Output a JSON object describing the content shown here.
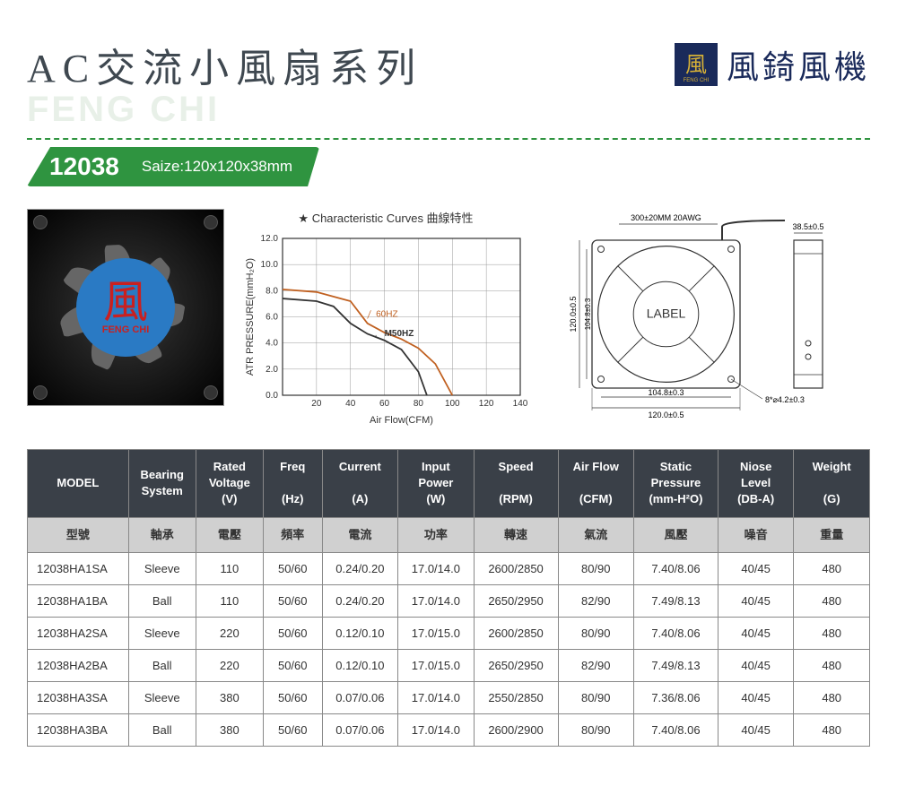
{
  "colors": {
    "accent_green": "#3a9d3a",
    "banner_green": "#2f9440",
    "dashed_green": "#2f9440",
    "header_bg": "#3a4048",
    "brand_navy": "#1a2a5a",
    "brand_gold": "#d4af37",
    "hub_blue": "#2a7ac4",
    "hub_red": "#c92020",
    "chart_60hz": "#c06020",
    "chart_50hz": "#333333",
    "grid": "#999999"
  },
  "header": {
    "title": "AC交流小風扇系列",
    "watermark": "FENG CHI",
    "brand_char": "風",
    "brand_sub": "FENG CHI",
    "brand_text": "風錡風機"
  },
  "banner": {
    "model": "12038",
    "size_label": "Saize:120x120x38mm"
  },
  "fan": {
    "hub_char": "風",
    "hub_brand": "FENG CHI"
  },
  "chart": {
    "title": "★ Characteristic Curves 曲線特性",
    "ylabel": "ATR PRESSURE(mmH₂O)",
    "xlabel": "Air Flow(CFM)",
    "xlim": [
      0,
      140
    ],
    "ylim": [
      0,
      12
    ],
    "xtick_step": 20,
    "ytick_step": 2,
    "label_50hz": "M50HZ",
    "label_60hz": "60HZ",
    "curve_50hz": [
      [
        0,
        7.4
      ],
      [
        20,
        7.2
      ],
      [
        30,
        6.8
      ],
      [
        40,
        5.5
      ],
      [
        50,
        4.7
      ],
      [
        60,
        4.2
      ],
      [
        70,
        3.5
      ],
      [
        80,
        1.8
      ],
      [
        85,
        0
      ]
    ],
    "curve_60hz": [
      [
        0,
        8.1
      ],
      [
        20,
        7.9
      ],
      [
        40,
        7.2
      ],
      [
        50,
        5.5
      ],
      [
        60,
        4.8
      ],
      [
        70,
        4.3
      ],
      [
        80,
        3.6
      ],
      [
        90,
        2.4
      ],
      [
        100,
        0
      ]
    ],
    "axis_fontsize": 10
  },
  "drawing": {
    "outer": "120.0±0.5",
    "hole_pitch": "104.8±0.3",
    "inner_v": "104.8±0.3",
    "cable": "300±20MM 20AWG",
    "depth": "38.5±0.5",
    "hole_dia": "8*⌀4.2±0.3",
    "label_text": "LABEL"
  },
  "table": {
    "columns_en": [
      "MODEL",
      "Bearing\nSystem",
      "Rated\nVoltage\n(V)",
      "Freq\n\n(Hz)",
      "Current\n\n(A)",
      "Input\nPower\n(W)",
      "Speed\n\n(RPM)",
      "Air Flow\n\n(CFM)",
      "Static\nPressure\n(mm-H²O)",
      "Niose\nLevel\n(DB-A)",
      "Weight\n\n(G)"
    ],
    "columns_zh": [
      "型號",
      "軸承",
      "電壓",
      "頻率",
      "電流",
      "功率",
      "轉速",
      "氣流",
      "風壓",
      "噪音",
      "重量"
    ],
    "rows": [
      [
        "12038HA1SA",
        "Sleeve",
        "110",
        "50/60",
        "0.24/0.20",
        "17.0/14.0",
        "2600/2850",
        "80/90",
        "7.40/8.06",
        "40/45",
        "480"
      ],
      [
        "12038HA1BA",
        "Ball",
        "110",
        "50/60",
        "0.24/0.20",
        "17.0/14.0",
        "2650/2950",
        "82/90",
        "7.49/8.13",
        "40/45",
        "480"
      ],
      [
        "12038HA2SA",
        "Sleeve",
        "220",
        "50/60",
        "0.12/0.10",
        "17.0/15.0",
        "2600/2850",
        "80/90",
        "7.40/8.06",
        "40/45",
        "480"
      ],
      [
        "12038HA2BA",
        "Ball",
        "220",
        "50/60",
        "0.12/0.10",
        "17.0/15.0",
        "2650/2950",
        "82/90",
        "7.49/8.13",
        "40/45",
        "480"
      ],
      [
        "12038HA3SA",
        "Sleeve",
        "380",
        "50/60",
        "0.07/0.06",
        "17.0/14.0",
        "2550/2850",
        "80/90",
        "7.36/8.06",
        "40/45",
        "480"
      ],
      [
        "12038HA3BA",
        "Ball",
        "380",
        "50/60",
        "0.07/0.06",
        "17.0/14.0",
        "2600/2900",
        "80/90",
        "7.40/8.06",
        "40/45",
        "480"
      ]
    ],
    "col_widths_pct": [
      12,
      8,
      8,
      7,
      9,
      9,
      10,
      9,
      10,
      9,
      9
    ]
  }
}
